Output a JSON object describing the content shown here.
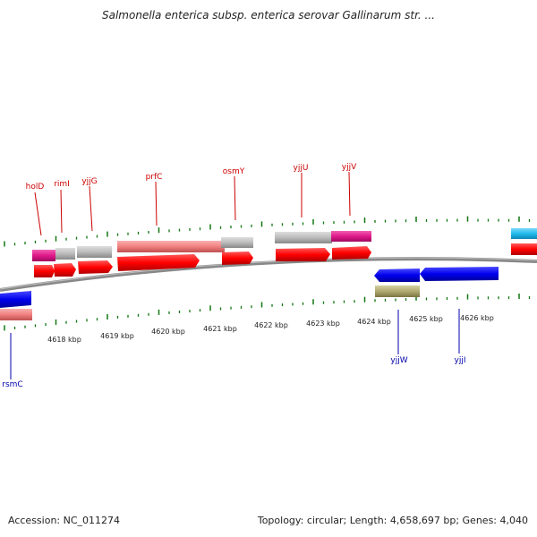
{
  "title": "Salmonella enterica subsp. enterica serovar Gallinarum str. ...",
  "footer": {
    "accession": "Accession: NC_011274",
    "summary": "Topology: circular; Length: 4,658,697 bp; Genes: 4,040"
  },
  "genome_map": {
    "colors": {
      "forward_gene": "#ff0000",
      "reverse_gene": "#0000ee",
      "label_forward": "#cc0000",
      "label_reverse": "#0000aa",
      "tick": "#117711",
      "backbone": "#808080",
      "magenta": "#e0188a",
      "pink": "#f08080",
      "gray": "#bbbbbb",
      "cyan": "#22bbee",
      "olive": "#b0aa70"
    },
    "kbp_labels": [
      "4618 kbp",
      "4619 kbp",
      "4620 kbp",
      "4621 kbp",
      "4622 kbp",
      "4623 kbp",
      "4624 kbp",
      "4625 kbp",
      "4626 kbp"
    ],
    "forward_gene_labels": [
      "holD",
      "rimI",
      "yjjG",
      "prfC",
      "osmY",
      "yjjU",
      "yjjV"
    ],
    "reverse_gene_labels": [
      "rsmC",
      "yjjW",
      "yjjI"
    ]
  }
}
